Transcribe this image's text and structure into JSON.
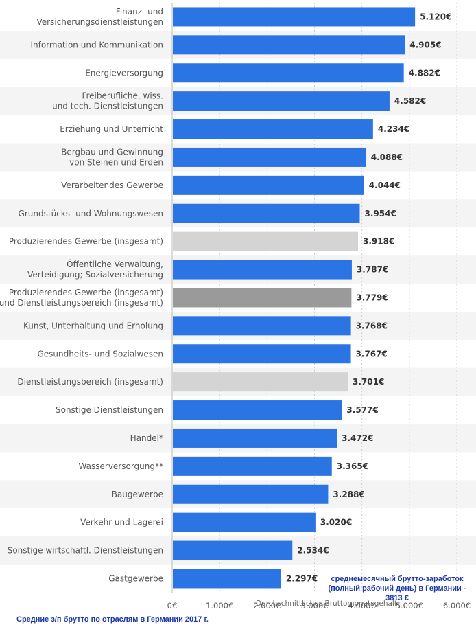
{
  "colors": {
    "bar_blue": "#2a74e3",
    "bar_light_gray": "#d4d4d4",
    "bar_dark_gray": "#9a9a9a",
    "row_stripe": "#f4f4f4",
    "note_text": "#1f3aa6"
  },
  "chart_data": {
    "type": "bar",
    "orientation": "horizontal",
    "title": "",
    "xlabel": "Durchschnittliches Bruttomonatsgehalt",
    "ylabel": "",
    "xlim": [
      0,
      6000
    ],
    "x_ticks": [
      "0€",
      "1.000€",
      "2.000€",
      "3.000€",
      "4.000€",
      "5.000€",
      "6.000€"
    ],
    "grid": "vertical dashed",
    "legend": "none",
    "categories": [
      [
        "Finanz- und",
        "Versicherungsdienstleistungen"
      ],
      [
        "Information und Kommunikation"
      ],
      [
        "Energieversorgung"
      ],
      [
        "Freiberufliche, wiss.",
        "und tech. Dienstleistungen"
      ],
      [
        "Erziehung und Unterricht"
      ],
      [
        "Bergbau und Gewinnung",
        "von Steinen und Erden"
      ],
      [
        "Verarbeitendes Gewerbe"
      ],
      [
        "Grundstücks- und Wohnungswesen"
      ],
      [
        "Produzierendes Gewerbe (insgesamt)"
      ],
      [
        "Öffentliche Verwaltung,",
        "Verteidigung; Sozialversicherung"
      ],
      [
        "Produzierendes Gewerbe (insgesamt)",
        "und Dienstleistungsbereich (insgesamt)"
      ],
      [
        "Kunst, Unterhaltung und Erholung"
      ],
      [
        "Gesundheits- und Sozialwesen"
      ],
      [
        "Dienstleistungsbereich (insgesamt)"
      ],
      [
        "Sonstige Dienstleistungen"
      ],
      [
        "Handel*"
      ],
      [
        "Wasserversorgung**"
      ],
      [
        "Baugewerbe"
      ],
      [
        "Verkehr und Lagerei"
      ],
      [
        "Sonstige wirtschaftl. Dienstleistungen"
      ],
      [
        "Gastgewerbe"
      ]
    ],
    "values": [
      5120,
      4905,
      4882,
      4582,
      4234,
      4088,
      4044,
      3954,
      3918,
      3787,
      3779,
      3768,
      3767,
      3701,
      3577,
      3472,
      3365,
      3288,
      3020,
      2534,
      2297
    ],
    "value_labels": [
      "5.120€",
      "4.905€",
      "4.882€",
      "4.582€",
      "4.234€",
      "4.088€",
      "4.044€",
      "3.954€",
      "3.918€",
      "3.787€",
      "3.779€",
      "3.768€",
      "3.767€",
      "3.701€",
      "3.577€",
      "3.472€",
      "3.365€",
      "3.288€",
      "3.020€",
      "2.534€",
      "2.297€"
    ],
    "bar_color_keys": [
      "blue",
      "blue",
      "blue",
      "blue",
      "blue",
      "blue",
      "blue",
      "blue",
      "light_gray",
      "blue",
      "dark_gray",
      "blue",
      "blue",
      "light_gray",
      "blue",
      "blue",
      "blue",
      "blue",
      "blue",
      "blue",
      "blue"
    ]
  },
  "annotation": {
    "lines": [
      "среднемесячный брутто-заработок",
      "(полный рабочий день) в Германии -",
      "3813 €"
    ]
  },
  "caption": "Средние з/п брутто по отраслям в Германии 2017 г."
}
